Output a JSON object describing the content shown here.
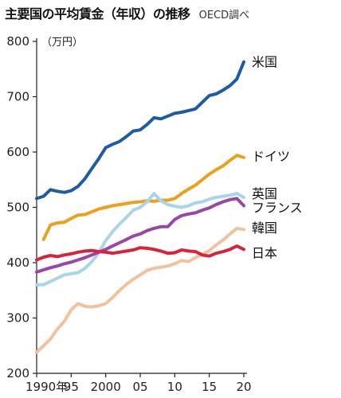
{
  "header": {
    "title": "主要国の平均賃金（年収）の推移",
    "source": "OECD調べ"
  },
  "chart_data": {
    "type": "line",
    "title": "主要国の平均賃金（年収）の推移",
    "unit": "（万円）",
    "xlabel": "",
    "ylabel": "",
    "xlim": [
      1990,
      2020
    ],
    "ylim": [
      200,
      800
    ],
    "yticks": [
      200,
      300,
      400,
      500,
      600,
      700,
      800
    ],
    "xticks": [
      {
        "value": 1990,
        "label": "1990年"
      },
      {
        "value": 1995,
        "label": "95"
      },
      {
        "value": 2000,
        "label": "2000"
      },
      {
        "value": 2005,
        "label": "05"
      },
      {
        "value": 2010,
        "label": "10"
      },
      {
        "value": 2015,
        "label": "15"
      },
      {
        "value": 2020,
        "label": "20"
      }
    ],
    "grid": false,
    "legend": "direct-labels-right",
    "series": [
      {
        "name": "米国",
        "color": "#1f5aa6",
        "x": [
          1990,
          1991,
          1992,
          1993,
          1994,
          1995,
          1996,
          1997,
          1998,
          1999,
          2000,
          2001,
          2002,
          2003,
          2004,
          2005,
          2006,
          2007,
          2008,
          2009,
          2010,
          2011,
          2012,
          2013,
          2014,
          2015,
          2016,
          2017,
          2018,
          2019,
          2020
        ],
        "y": [
          516,
          520,
          532,
          529,
          527,
          530,
          538,
          552,
          570,
          588,
          608,
          614,
          619,
          628,
          638,
          640,
          650,
          662,
          660,
          665,
          670,
          672,
          675,
          678,
          690,
          702,
          705,
          712,
          720,
          732,
          763
        ]
      },
      {
        "name": "ドイツ",
        "color": "#eca01c",
        "x": [
          1991,
          1992,
          1993,
          1994,
          1995,
          1996,
          1997,
          1998,
          1999,
          2000,
          2001,
          2002,
          2003,
          2004,
          2005,
          2006,
          2007,
          2008,
          2009,
          2010,
          2011,
          2012,
          2013,
          2014,
          2015,
          2016,
          2017,
          2018,
          2019,
          2020
        ],
        "y": [
          442,
          468,
          472,
          473,
          480,
          486,
          487,
          492,
          497,
          500,
          503,
          505,
          507,
          509,
          510,
          512,
          511,
          513,
          513,
          516,
          525,
          533,
          540,
          550,
          560,
          568,
          575,
          585,
          594,
          590
        ]
      },
      {
        "name": "英国",
        "color": "#a8d4ec",
        "x": [
          1990,
          1991,
          1992,
          1993,
          1994,
          1995,
          1996,
          1997,
          1998,
          1999,
          2000,
          2001,
          2002,
          2003,
          2004,
          2005,
          2006,
          2007,
          2008,
          2009,
          2010,
          2011,
          2012,
          2013,
          2014,
          2015,
          2016,
          2017,
          2018,
          2019,
          2020
        ],
        "y": [
          360,
          360,
          366,
          372,
          378,
          380,
          382,
          390,
          402,
          418,
          440,
          456,
          470,
          482,
          495,
          500,
          510,
          525,
          512,
          505,
          502,
          500,
          503,
          508,
          510,
          515,
          518,
          520,
          522,
          525,
          518
        ]
      },
      {
        "name": "フランス",
        "color": "#9a46a8",
        "x": [
          1990,
          1991,
          1992,
          1993,
          1994,
          1995,
          1996,
          1997,
          1998,
          1999,
          2000,
          2001,
          2002,
          2003,
          2004,
          2005,
          2006,
          2007,
          2008,
          2009,
          2010,
          2011,
          2012,
          2013,
          2014,
          2015,
          2016,
          2017,
          2018,
          2019,
          2020
        ],
        "y": [
          383,
          387,
          391,
          394,
          398,
          401,
          405,
          409,
          414,
          419,
          424,
          430,
          436,
          442,
          448,
          452,
          458,
          462,
          465,
          465,
          478,
          485,
          488,
          490,
          495,
          499,
          505,
          510,
          514,
          516,
          503
        ]
      },
      {
        "name": "韓国",
        "color": "#f2c19e",
        "x": [
          1990,
          1991,
          1992,
          1993,
          1994,
          1995,
          1996,
          1997,
          1998,
          1999,
          2000,
          2001,
          2002,
          2003,
          2004,
          2005,
          2006,
          2007,
          2008,
          2009,
          2010,
          2011,
          2012,
          2013,
          2014,
          2015,
          2016,
          2017,
          2018,
          2019,
          2020
        ],
        "y": [
          238,
          250,
          262,
          280,
          294,
          315,
          326,
          321,
          320,
          322,
          326,
          337,
          350,
          361,
          370,
          378,
          386,
          390,
          392,
          394,
          398,
          404,
          402,
          409,
          415,
          422,
          432,
          441,
          452,
          462,
          460
        ]
      },
      {
        "name": "日本",
        "color": "#d8233a",
        "x": [
          1990,
          1991,
          1992,
          1993,
          1994,
          1995,
          1996,
          1997,
          1998,
          1999,
          2000,
          2001,
          2002,
          2003,
          2004,
          2005,
          2006,
          2007,
          2008,
          2009,
          2010,
          2011,
          2012,
          2013,
          2014,
          2015,
          2016,
          2017,
          2018,
          2019,
          2020
        ],
        "y": [
          405,
          410,
          413,
          411,
          414,
          416,
          419,
          421,
          422,
          420,
          419,
          417,
          419,
          421,
          423,
          427,
          426,
          424,
          421,
          417,
          418,
          423,
          421,
          420,
          414,
          412,
          417,
          420,
          424,
          430,
          424
        ]
      }
    ],
    "series_labels_y": [
      763,
      593,
      525,
      500,
      463,
      418
    ]
  }
}
